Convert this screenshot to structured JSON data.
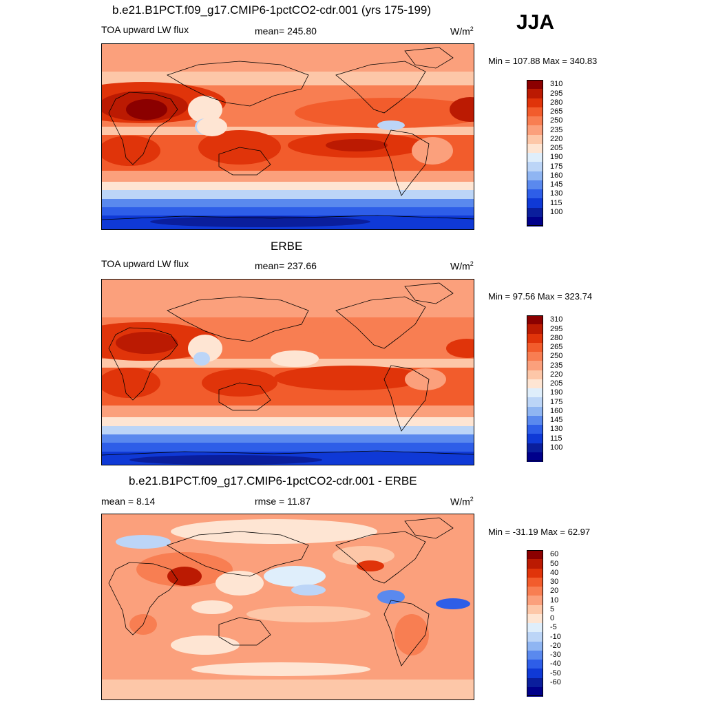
{
  "season": "JJA",
  "panels": [
    {
      "id": "model",
      "title": "b.e21.B1PCT.f09_g17.CMIP6-1pctCO2-cdr.001 (yrs 175-199)",
      "left_label": "TOA upward LW flux",
      "center_label": "mean= 245.80",
      "units_base": "W/m",
      "units_exp": "2",
      "minmax": "Min = 107.88 Max = 340.83",
      "levels": [
        "310",
        "295",
        "280",
        "265",
        "250",
        "235",
        "220",
        "205",
        "190",
        "175",
        "160",
        "145",
        "130",
        "115",
        "100"
      ]
    },
    {
      "id": "obs",
      "title": "ERBE",
      "left_label": "TOA upward LW flux",
      "center_label": "mean= 237.66",
      "units_base": "W/m",
      "units_exp": "2",
      "minmax": "Min =  97.56 Max = 323.74",
      "levels": [
        "310",
        "295",
        "280",
        "265",
        "250",
        "235",
        "220",
        "205",
        "190",
        "175",
        "160",
        "145",
        "130",
        "115",
        "100"
      ]
    },
    {
      "id": "diff",
      "title": "b.e21.B1PCT.f09_g17.CMIP6-1pctCO2-cdr.001 - ERBE",
      "left_label": "mean =   8.14",
      "center_label": "rmse =  11.87",
      "units_base": "W/m",
      "units_exp": "2",
      "minmax": "Min = -31.19 Max =  62.97",
      "levels": [
        "60",
        "50",
        "40",
        "30",
        "20",
        "10",
        "5",
        "0",
        "-5",
        "-10",
        "-20",
        "-30",
        "-40",
        "-50",
        "-60"
      ]
    }
  ],
  "palette": {
    "abs": [
      "#8b0000",
      "#bb1a02",
      "#e0340a",
      "#f25c2c",
      "#f87e52",
      "#fba07c",
      "#fdc7a8",
      "#fee5d3",
      "#dfeefb",
      "#bcd5f7",
      "#8fb5f2",
      "#5a89ee",
      "#2e5ee8",
      "#0f39d6",
      "#0a1e9c",
      "#00008b"
    ],
    "diff": [
      "#8b0000",
      "#bb1a02",
      "#e0340a",
      "#f25c2c",
      "#f87e52",
      "#fba07c",
      "#fdc7a8",
      "#fee5d3",
      "#dfeefb",
      "#bcd5f7",
      "#8fb5f2",
      "#5a89ee",
      "#2e5ee8",
      "#0f39d6",
      "#0a1e9c",
      "#00008b"
    ]
  }
}
